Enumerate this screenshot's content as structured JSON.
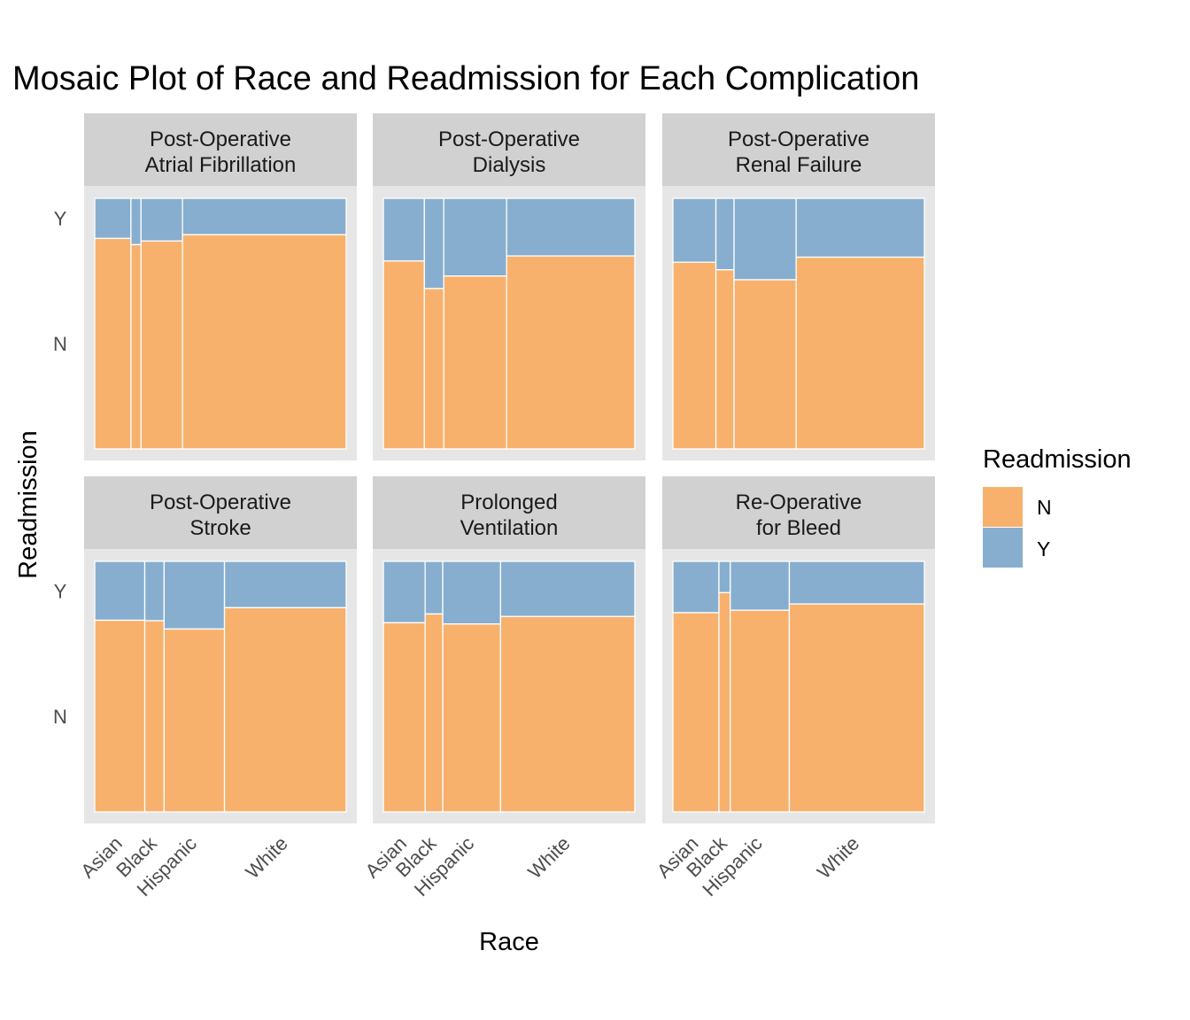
{
  "title": "Mosaic Plot of Race and Readmission for Each Complication",
  "xlabel": "Race",
  "ylabel": "Readmission",
  "legend": {
    "title": "Readmission",
    "items": [
      {
        "label": "N",
        "color": "#F7B16D"
      },
      {
        "label": "Y",
        "color": "#87AECF"
      }
    ]
  },
  "colors": {
    "N": "#F7B16D",
    "Y": "#87AECF",
    "panel_bg": "#E6E6E6",
    "strip_bg": "#D1D1D1"
  },
  "chart_data": {
    "type": "mosaic",
    "x_categories": [
      "Asian",
      "Black",
      "Hispanic",
      "White"
    ],
    "y_categories": [
      "N",
      "Y"
    ],
    "grid": false,
    "legend_position": "right",
    "facets": [
      {
        "label_lines": [
          "Post-Operative",
          "Atrial Fibrillation"
        ],
        "race_shares": [
          0.144,
          0.04,
          0.165,
          0.651
        ],
        "readmission_y_rate": [
          0.16,
          0.185,
          0.17,
          0.145
        ]
      },
      {
        "label_lines": [
          "Post-Operative",
          "Dialysis"
        ],
        "race_shares": [
          0.163,
          0.077,
          0.25,
          0.51
        ],
        "readmission_y_rate": [
          0.25,
          0.36,
          0.31,
          0.23
        ]
      },
      {
        "label_lines": [
          "Post-Operative",
          "Renal Failure"
        ],
        "race_shares": [
          0.171,
          0.072,
          0.247,
          0.51
        ],
        "readmission_y_rate": [
          0.255,
          0.285,
          0.325,
          0.235
        ]
      },
      {
        "label_lines": [
          "Post-Operative",
          "Stroke"
        ],
        "race_shares": [
          0.199,
          0.077,
          0.24,
          0.484
        ],
        "readmission_y_rate": [
          0.235,
          0.237,
          0.27,
          0.185
        ]
      },
      {
        "label_lines": [
          "Prolonged",
          "Ventilation"
        ],
        "race_shares": [
          0.166,
          0.07,
          0.23,
          0.534
        ],
        "readmission_y_rate": [
          0.245,
          0.21,
          0.25,
          0.22
        ]
      },
      {
        "label_lines": [
          "Re-Operative",
          "for Bleed"
        ],
        "race_shares": [
          0.183,
          0.045,
          0.235,
          0.537
        ],
        "readmission_y_rate": [
          0.205,
          0.125,
          0.195,
          0.17
        ]
      }
    ]
  }
}
